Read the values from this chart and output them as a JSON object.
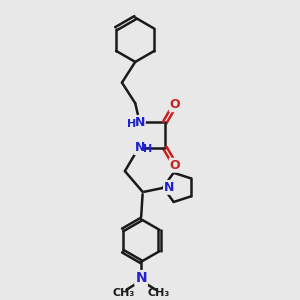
{
  "background_color": "#e8e8e8",
  "bond_color": "#1a1a1a",
  "nitrogen_color": "#2020cc",
  "oxygen_color": "#cc2020",
  "line_width": 1.8,
  "font_size": 9,
  "figsize": [
    3.0,
    3.0
  ],
  "dpi": 100,
  "xlim": [
    0,
    10
  ],
  "ylim": [
    0,
    10
  ]
}
